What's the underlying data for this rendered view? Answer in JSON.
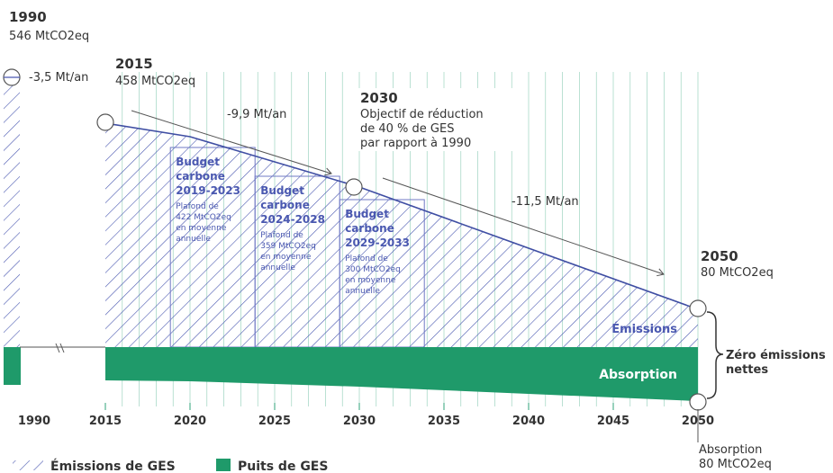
{
  "chart_data": {
    "type": "area",
    "title": "",
    "xlabel": "",
    "ylabel": "",
    "x_ticks": [
      "1990",
      "2015",
      "2020",
      "2025",
      "2030",
      "2035",
      "2040",
      "2045",
      "2050"
    ],
    "x_tick_values": [
      1990,
      2015,
      2020,
      2025,
      2030,
      2035,
      2040,
      2045,
      2050
    ],
    "ylim": [
      -90,
      560
    ],
    "series": [
      {
        "name": "Émissions de GES",
        "x": [
          1990,
          2015,
          2020,
          2030,
          2050
        ],
        "values": [
          546,
          458,
          432,
          358,
          80
        ]
      },
      {
        "name": "Puits de GES",
        "x": [
          1990,
          2015,
          2020,
          2030,
          2050
        ],
        "values": [
          -50,
          -50,
          -52,
          -58,
          -80
        ]
      }
    ],
    "annotations": {
      "p1990_year": "1990",
      "p1990_value": "546 MtCO2eq",
      "p2015_year": "2015",
      "p2015_value": "458 MtCO2eq",
      "p2030_year": "2030",
      "p2030_line1": "Objectif de réduction",
      "p2030_line2": "de 40 % de GES",
      "p2030_line3": "par rapport à 1990",
      "p2050_year": "2050",
      "p2050_value": "80 MtCO2eq",
      "absorption_title": "Absorption",
      "absorption_value": "80 MtCO2eq",
      "rate_1": "-3,5 Mt/an",
      "rate_2": "-9,9 Mt/an",
      "rate_3": "-11,5 Mt/an",
      "emissions_label": "Émissions",
      "absorption_label": "Absorption",
      "zero_line1": "Zéro émissions",
      "zero_line2": "nettes"
    },
    "budgets": [
      {
        "l1": "Budget",
        "l2": "carbone",
        "period": "2019-2023",
        "s1": "Plafond de",
        "s2": "422 MtCO2eq",
        "s3": "en moyenne",
        "s4": "annuelle"
      },
      {
        "l1": "Budget",
        "l2": "carbone",
        "period": "2024-2028",
        "s1": "Plafond de",
        "s2": "359 MtCO2eq",
        "s3": "en moyenne",
        "s4": "annuelle"
      },
      {
        "l1": "Budget",
        "l2": "carbone",
        "period": "2029-2033",
        "s1": "Plafond de",
        "s2": "300 MtCO2eq",
        "s3": "en moyenne",
        "s4": "annuelle"
      }
    ],
    "legend": [
      "Émissions de GES",
      "Puits de GES"
    ],
    "colors": {
      "emissions": "#3f4ea3",
      "sink": "#1f9a6a",
      "grid": "#2fa37a",
      "text": "#3a3a3a",
      "blue": "#4a58b0"
    }
  }
}
